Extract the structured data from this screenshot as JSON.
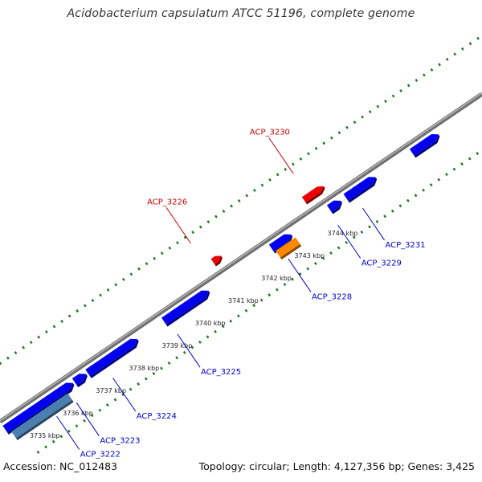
{
  "title": "Acidobacterium capsulatum ATCC 51196, complete genome",
  "footer": {
    "accession": "Accession: NC_012483",
    "summary": "Topology: circular; Length: 4,127,356 bp; Genes: 3,425"
  },
  "colors": {
    "backbone": "#8c8c8c",
    "gc_dots": "#1f7a1f",
    "cds": "#0000ee",
    "rna_red": "#ee0000",
    "orange": "#ff8800",
    "steel": "#4a7fb0",
    "label_blue": "#0000cc",
    "label_red": "#cc0000"
  },
  "ticks": [
    {
      "label": "3735 kbp",
      "kbp": 3735
    },
    {
      "label": "3736 kbp",
      "kbp": 3736
    },
    {
      "label": "3737 kbp",
      "kbp": 3737
    },
    {
      "label": "3738 kbp",
      "kbp": 3738
    },
    {
      "label": "3739 kbp",
      "kbp": 3739
    },
    {
      "label": "3740 kbp",
      "kbp": 3740
    },
    {
      "label": "3741 kbp",
      "kbp": 3741
    },
    {
      "label": "3742 kbp",
      "kbp": 3742
    },
    {
      "label": "3743 kbp",
      "kbp": 3743
    },
    {
      "label": "3744 kbp",
      "kbp": 3744
    }
  ],
  "features": [
    {
      "id": "f1",
      "strand": "forward",
      "type": "cds",
      "start_kbp": 3734.3,
      "end_kbp": 3736.35,
      "color": "#0000ee"
    },
    {
      "id": "f2",
      "strand": "forward",
      "type": "cds",
      "start_kbp": 3736.4,
      "end_kbp": 3736.75,
      "color": "#0000ee"
    },
    {
      "id": "f3",
      "strand": "forward",
      "type": "cds",
      "start_kbp": 3736.8,
      "end_kbp": 3738.3,
      "color": "#0000ee"
    },
    {
      "id": "f4",
      "strand": "forward",
      "type": "cds",
      "start_kbp": 3739.1,
      "end_kbp": 3740.45,
      "color": "#0000ee"
    },
    {
      "id": "f5",
      "strand": "forward",
      "type": "cds",
      "start_kbp": 3742.35,
      "end_kbp": 3742.95,
      "color": "#0000ee"
    },
    {
      "id": "f6",
      "strand": "forward",
      "type": "cds",
      "start_kbp": 3744.1,
      "end_kbp": 3744.45,
      "color": "#0000ee"
    },
    {
      "id": "f7",
      "strand": "forward",
      "type": "cds",
      "start_kbp": 3744.6,
      "end_kbp": 3745.5,
      "color": "#0000ee"
    },
    {
      "id": "f8",
      "strand": "forward",
      "type": "cds",
      "start_kbp": 3746.6,
      "end_kbp": 3747.4,
      "color": "#0000ee"
    },
    {
      "id": "steel",
      "strand": "forward",
      "type": "other",
      "start_kbp": 3734.4,
      "end_kbp": 3736.1,
      "color": "#4a7fb0"
    },
    {
      "id": "orange",
      "strand": "forward",
      "type": "other",
      "start_kbp": 3742.4,
      "end_kbp": 3743.0,
      "color": "#ff8800"
    },
    {
      "id": "red1",
      "strand": "reverse",
      "type": "rna",
      "start_kbp": 3740.95,
      "end_kbp": 3741.2,
      "color": "#ee0000"
    },
    {
      "id": "red2",
      "strand": "reverse",
      "type": "rna",
      "start_kbp": 3743.7,
      "end_kbp": 3744.3,
      "color": "#ee0000"
    }
  ],
  "labels": [
    {
      "text": "ACP_3222",
      "gene_kbp": 3735.55,
      "side": "below",
      "color": "#0000cc"
    },
    {
      "text": "ACP_3223",
      "gene_kbp": 3736.15,
      "side": "below",
      "color": "#0000cc"
    },
    {
      "text": "ACP_3224",
      "gene_kbp": 3737.25,
      "side": "below",
      "color": "#0000cc"
    },
    {
      "text": "ACP_3225",
      "gene_kbp": 3739.2,
      "side": "below",
      "color": "#0000cc"
    },
    {
      "text": "ACP_3228",
      "gene_kbp": 3742.55,
      "side": "below",
      "color": "#0000cc"
    },
    {
      "text": "ACP_3229",
      "gene_kbp": 3744.05,
      "side": "below",
      "color": "#0000cc"
    },
    {
      "text": "ACP_3231",
      "gene_kbp": 3744.8,
      "side": "below",
      "color": "#0000cc"
    },
    {
      "text": "ACP_3226",
      "gene_kbp": 3740.75,
      "side": "above",
      "color": "#cc0000"
    },
    {
      "text": "ACP_3230",
      "gene_kbp": 3743.85,
      "side": "above",
      "color": "#cc0000"
    }
  ]
}
